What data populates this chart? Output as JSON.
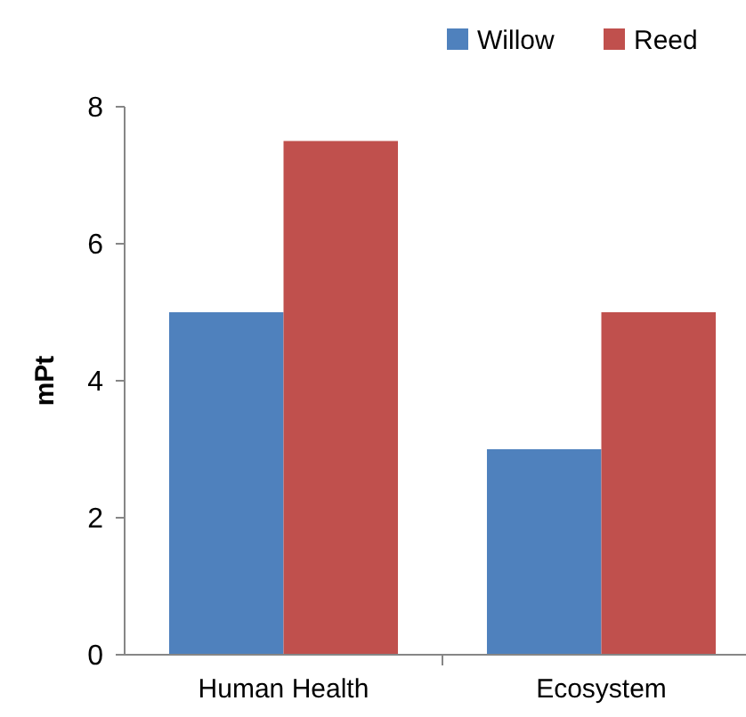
{
  "chart_data": {
    "type": "bar",
    "ylabel": "mPt",
    "categories": [
      "Human Health",
      "Ecosystem"
    ],
    "series": [
      {
        "name": "Willow",
        "color": "#4f81bd",
        "values": [
          5,
          3
        ]
      },
      {
        "name": "Reed",
        "color": "#c0504d",
        "values": [
          7.5,
          5
        ]
      }
    ],
    "ylim": [
      0,
      8
    ],
    "yticks": [
      0,
      2,
      4,
      6,
      8
    ],
    "grid": false,
    "legend": "top right"
  }
}
